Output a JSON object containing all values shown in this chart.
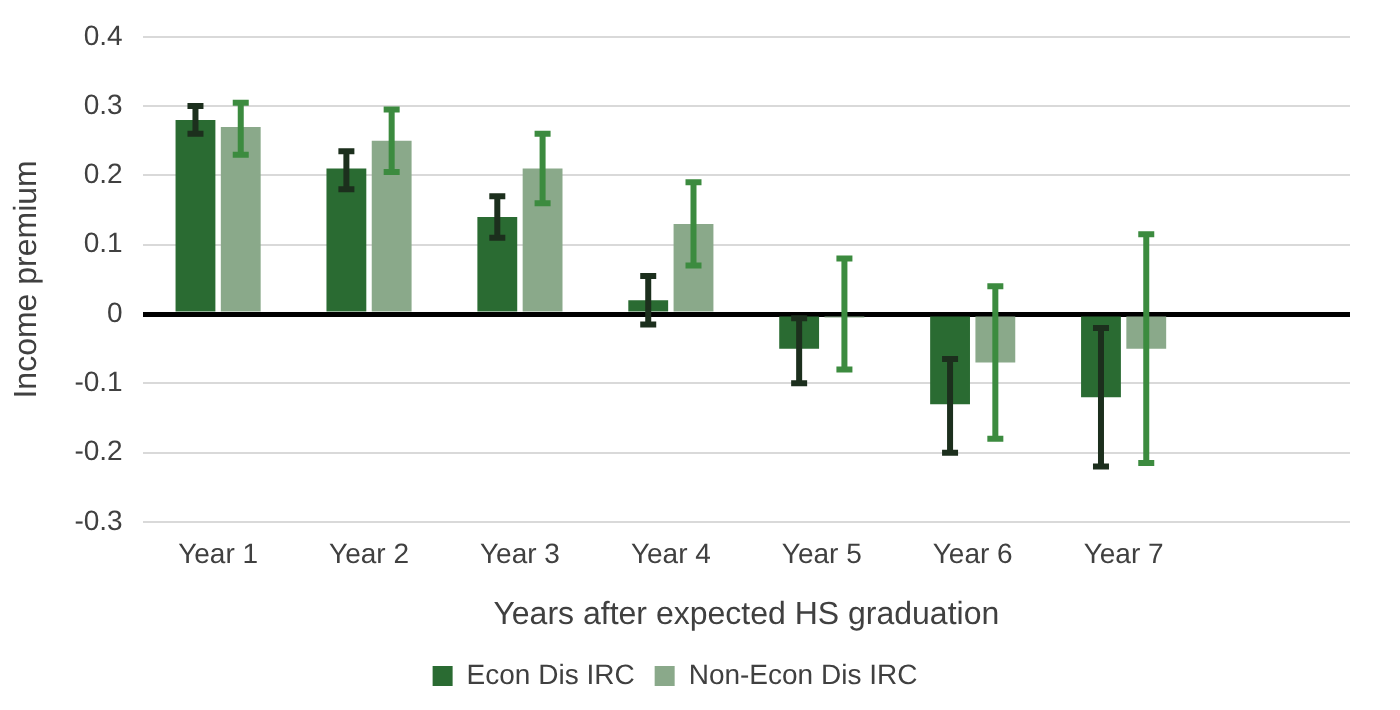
{
  "chart_data": {
    "type": "bar",
    "xlabel": "Years after expected HS graduation",
    "ylabel": "Income premium",
    "categories": [
      "Year 1",
      "Year 2",
      "Year 3",
      "Year 4",
      "Year 5",
      "Year 6",
      "Year 7",
      null
    ],
    "series": [
      {
        "name": "Econ Dis IRC",
        "color": "#2a6b32",
        "values": [
          0.28,
          0.21,
          0.14,
          0.02,
          -0.05,
          -0.13,
          -0.12,
          null
        ],
        "errors": [
          [
            0.26,
            0.3
          ],
          [
            0.18,
            0.235
          ],
          [
            0.11,
            0.17
          ],
          [
            -0.015,
            0.055
          ],
          [
            -0.1,
            -0.006
          ],
          [
            -0.2,
            -0.065
          ],
          [
            -0.22,
            -0.02
          ],
          null
        ]
      },
      {
        "name": "Non-Econ Dis IRC",
        "color": "#8aa98a",
        "values": [
          0.27,
          0.25,
          0.21,
          0.13,
          -0.005,
          -0.07,
          -0.05,
          null
        ],
        "errors": [
          [
            0.23,
            0.305
          ],
          [
            0.205,
            0.295
          ],
          [
            0.16,
            0.26
          ],
          [
            0.07,
            0.19
          ],
          [
            -0.08,
            0.08
          ],
          [
            -0.18,
            0.04
          ],
          [
            -0.215,
            0.115
          ],
          null
        ]
      }
    ],
    "ylim": [
      -0.3,
      0.4
    ],
    "yticks": [
      -0.3,
      -0.2,
      -0.1,
      0,
      0.1,
      0.2,
      0.3,
      0.4
    ],
    "grid": "y",
    "legend": "bottom"
  }
}
